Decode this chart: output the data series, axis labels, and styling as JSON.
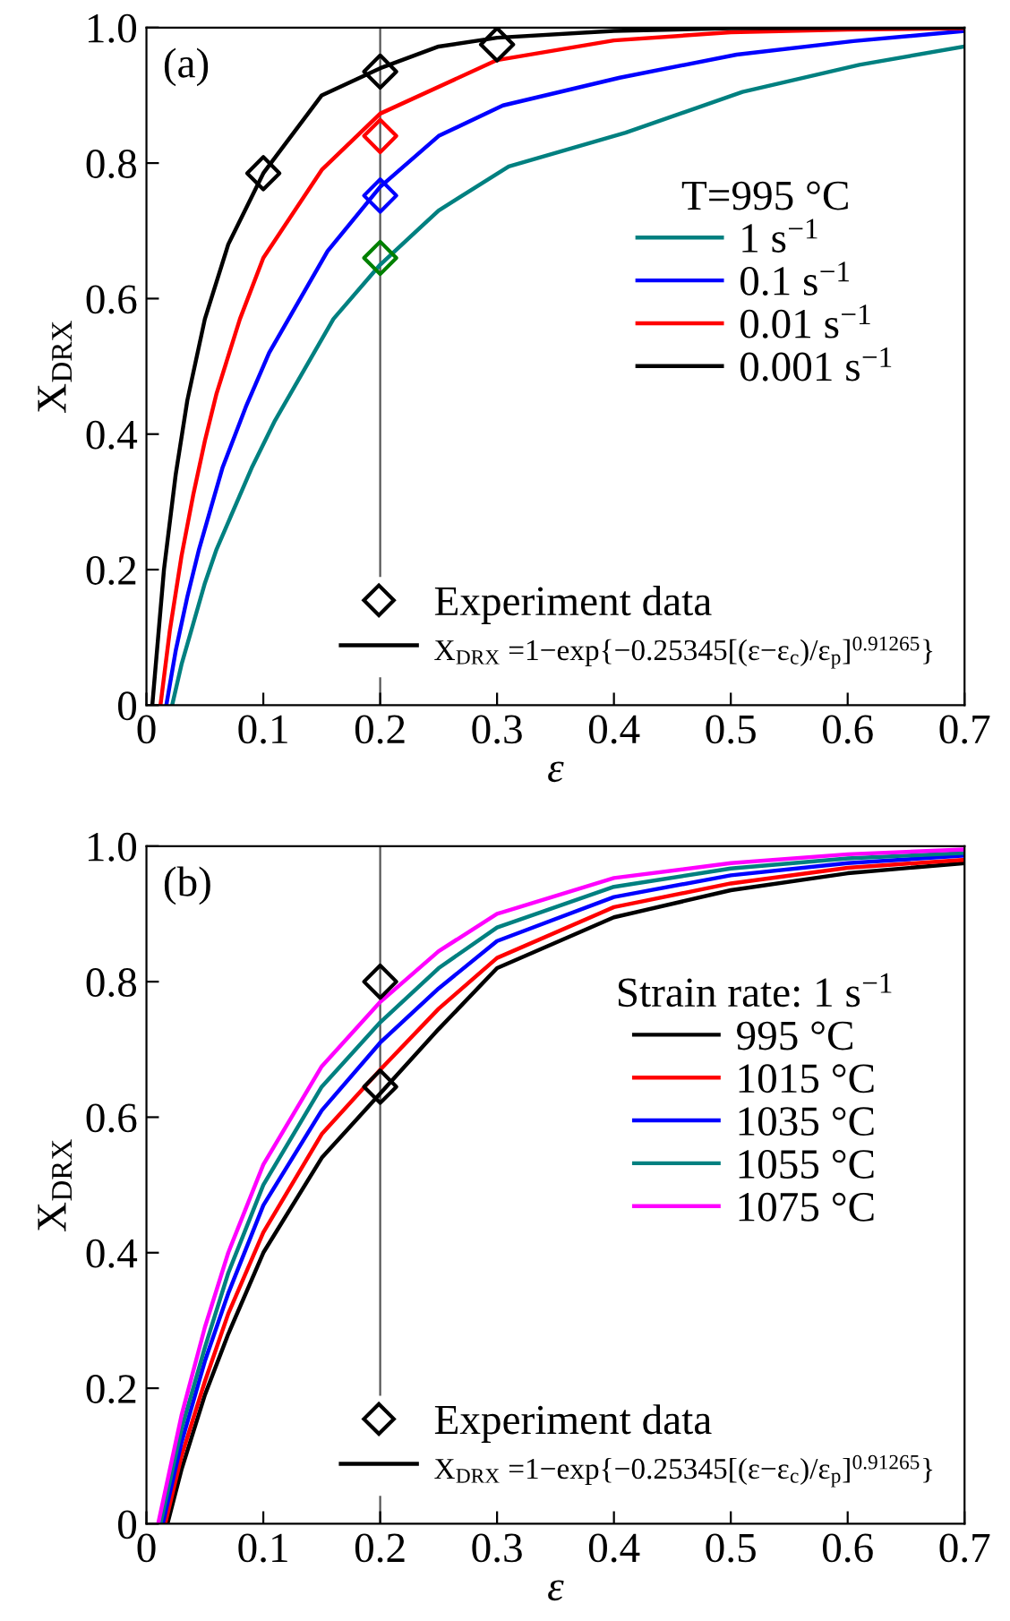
{
  "chart_data": [
    {
      "type": "line",
      "xlabel": "ε",
      "ylabel": "X$_{DRX}$",
      "legend_title": "T=995 °C",
      "legend": "right",
      "grid": false,
      "marker": "none",
      "line_style": "solid",
      "xlim": [
        0,
        0.7
      ],
      "xticks": [
        0,
        0.1,
        0.2,
        0.3,
        0.4,
        0.5,
        0.6,
        {
          "value": 0.7,
          "label": "0.7"
        }
      ],
      "ylim": [
        0,
        1.0
      ],
      "yticks": [
        0,
        0.2,
        0.4,
        0.6,
        0.8,
        {
          "value": 1.0,
          "label": "1.0"
        }
      ],
      "ref_lines": [
        {
          "axis": "x",
          "value": 0.2,
          "color": "#555555"
        }
      ],
      "annotations": [
        "(a)",
        "X$_{DRX}$ =1−exp{−0.25345[(ε−ε$_{c}$)/ε$_{p}$]$^{0.91265}$}"
      ],
      "series": [
        {
          "name": "1 s$^{−1}$",
          "color": "#008080",
          "x": [
            0.022,
            0.03,
            0.04,
            0.05,
            0.06,
            0.07,
            0.09,
            0.11,
            0.16,
            0.2,
            0.25,
            0.31,
            0.41,
            0.51,
            0.61,
            0.7
          ],
          "values": [
            0,
            0.06,
            0.12,
            0.18,
            0.23,
            0.27,
            0.35,
            0.42,
            0.57,
            0.65,
            0.73,
            0.795,
            0.845,
            0.905,
            0.945,
            0.972
          ]
        },
        {
          "name": "0.1 s$^{−1}$",
          "color": "#0000ff",
          "x": [
            0.017,
            0.025,
            0.035,
            0.045,
            0.055,
            0.065,
            0.085,
            0.105,
            0.155,
            0.2,
            0.25,
            0.305,
            0.405,
            0.505,
            0.605,
            0.7
          ],
          "values": [
            0,
            0.08,
            0.16,
            0.23,
            0.29,
            0.35,
            0.44,
            0.52,
            0.67,
            0.765,
            0.84,
            0.885,
            0.926,
            0.96,
            0.98,
            0.995
          ]
        },
        {
          "name": "0.01 s$^{−1}$",
          "color": "#ff0000",
          "x": [
            0.012,
            0.02,
            0.03,
            0.04,
            0.05,
            0.06,
            0.08,
            0.1,
            0.15,
            0.2,
            0.3,
            0.4,
            0.5,
            0.6,
            0.7
          ],
          "values": [
            0,
            0.11,
            0.22,
            0.31,
            0.39,
            0.46,
            0.57,
            0.66,
            0.79,
            0.873,
            0.952,
            0.981,
            0.993,
            0.997,
            0.999
          ]
        },
        {
          "name": "0.001 s$^{−1}$",
          "color": "#000000",
          "x": [
            0.005,
            0.015,
            0.025,
            0.035,
            0.05,
            0.07,
            0.1,
            0.15,
            0.2,
            0.25,
            0.3,
            0.4,
            0.5,
            0.7
          ],
          "values": [
            0,
            0.2,
            0.34,
            0.45,
            0.57,
            0.68,
            0.785,
            0.9,
            0.94,
            0.972,
            0.985,
            0.995,
            0.999,
            1.0
          ]
        },
        {
          "name": "Experiment data",
          "type": "scatter",
          "marker": "diamond",
          "x": [
            0.1,
            0.2,
            0.3,
            0.2,
            0.2,
            0.2
          ],
          "values": [
            0.785,
            0.935,
            0.975,
            0.84,
            0.752,
            0.66
          ],
          "colors": [
            "#000000",
            "#000000",
            "#000000",
            "#ff0000",
            "#0000ff",
            "#008000"
          ],
          "color": "#000000"
        }
      ]
    },
    {
      "type": "line",
      "xlabel": "ε",
      "ylabel": "X$_{DRX}$",
      "legend_title": "Strain rate: 1 s$^{−1}$",
      "legend": "right",
      "grid": false,
      "marker": "none",
      "line_style": "solid",
      "xlim": [
        0,
        0.7
      ],
      "xticks": [
        0,
        0.1,
        0.2,
        0.3,
        0.4,
        0.5,
        0.6,
        {
          "value": 0.7,
          "label": "0.7"
        }
      ],
      "ylim": [
        0,
        1.0
      ],
      "yticks": [
        0,
        0.2,
        0.4,
        0.6,
        0.8,
        {
          "value": 1.0,
          "label": "1.0"
        }
      ],
      "ref_lines": [
        {
          "axis": "x",
          "value": 0.2,
          "color": "#555555"
        }
      ],
      "annotations": [
        "(b)",
        "X$_{DRX}$ =1−exp{−0.25345[(ε−ε$_{c}$)/ε$_{p}$]$^{0.91265}$}"
      ],
      "series": [
        {
          "name": "995 °C",
          "color": "#000000",
          "x": [
            0.018,
            0.03,
            0.05,
            0.07,
            0.1,
            0.15,
            0.2,
            0.25,
            0.3,
            0.4,
            0.5,
            0.6,
            0.7
          ],
          "values": [
            0,
            0.08,
            0.19,
            0.28,
            0.4,
            0.54,
            0.635,
            0.73,
            0.82,
            0.895,
            0.935,
            0.96,
            0.975
          ]
        },
        {
          "name": "1015 °C",
          "color": "#ff0000",
          "x": [
            0.016,
            0.03,
            0.05,
            0.07,
            0.1,
            0.15,
            0.2,
            0.25,
            0.3,
            0.4,
            0.5,
            0.6,
            0.7
          ],
          "values": [
            0,
            0.1,
            0.21,
            0.31,
            0.43,
            0.575,
            0.67,
            0.76,
            0.835,
            0.91,
            0.945,
            0.968,
            0.98
          ]
        },
        {
          "name": "1035 °C",
          "color": "#0000ff",
          "x": [
            0.014,
            0.03,
            0.05,
            0.07,
            0.1,
            0.15,
            0.2,
            0.25,
            0.3,
            0.4,
            0.5,
            0.6,
            0.7
          ],
          "values": [
            0,
            0.12,
            0.24,
            0.34,
            0.47,
            0.61,
            0.71,
            0.79,
            0.86,
            0.925,
            0.957,
            0.975,
            0.986
          ]
        },
        {
          "name": "1055 °C",
          "color": "#008080",
          "x": [
            0.012,
            0.03,
            0.05,
            0.07,
            0.1,
            0.15,
            0.2,
            0.25,
            0.3,
            0.4,
            0.5,
            0.6,
            0.7
          ],
          "values": [
            0,
            0.14,
            0.26,
            0.37,
            0.5,
            0.645,
            0.74,
            0.82,
            0.88,
            0.94,
            0.967,
            0.982,
            0.99
          ]
        },
        {
          "name": "1075 °C",
          "color": "#ff00ff",
          "x": [
            0.01,
            0.03,
            0.05,
            0.07,
            0.1,
            0.15,
            0.2,
            0.25,
            0.3,
            0.4,
            0.5,
            0.6,
            0.7
          ],
          "values": [
            0,
            0.16,
            0.29,
            0.4,
            0.53,
            0.675,
            0.77,
            0.845,
            0.9,
            0.953,
            0.975,
            0.988,
            0.995
          ]
        },
        {
          "name": "Experiment data",
          "type": "scatter",
          "marker": "diamond",
          "x": [
            0.2,
            0.2
          ],
          "values": [
            0.8,
            0.645
          ],
          "colors": [
            "#000000",
            "#000000"
          ],
          "color": "#000000"
        }
      ]
    }
  ]
}
